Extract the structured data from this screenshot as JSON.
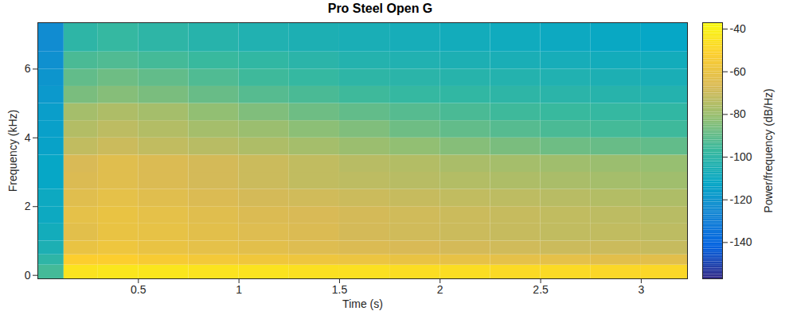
{
  "chart_data": {
    "type": "heatmap",
    "title": "Pro Steel Open G",
    "x_label": "Time (s)",
    "y_label": "Frequency (kHz)",
    "xlim": [
      0,
      3.23
    ],
    "xticks": [
      0.5,
      1,
      1.5,
      2,
      2.5,
      3
    ],
    "ylim": [
      -0.1,
      7.35
    ],
    "yticks": [
      0,
      2,
      4,
      6
    ],
    "time_edges": [
      0,
      0.13,
      0.3,
      0.5,
      0.75,
      1.0,
      1.25,
      1.5,
      1.75,
      2.0,
      2.25,
      2.5,
      2.75,
      3.0,
      3.23
    ],
    "freq_edges": [
      -0.1,
      0.3,
      0.6,
      1.0,
      1.5,
      2.0,
      2.5,
      3.0,
      3.5,
      4.0,
      4.5,
      5.0,
      5.5,
      6.0,
      6.5,
      7.35
    ],
    "cells": [
      [
        -95,
        -45,
        -44,
        -44,
        -45,
        -45,
        -46,
        -46,
        -47,
        -47,
        -48,
        -48,
        -49,
        -49
      ],
      [
        -100,
        -52,
        -52,
        -54,
        -56,
        -57,
        -58,
        -59,
        -60,
        -61,
        -62,
        -62,
        -63,
        -63
      ],
      [
        -105,
        -60,
        -58,
        -60,
        -62,
        -63,
        -65,
        -66,
        -67,
        -68,
        -69,
        -70,
        -70,
        -71
      ],
      [
        -108,
        -63,
        -60,
        -61,
        -63,
        -65,
        -66,
        -68,
        -69,
        -70,
        -71,
        -72,
        -72,
        -73
      ],
      [
        -110,
        -62,
        -60,
        -62,
        -64,
        -66,
        -67,
        -68,
        -69,
        -70,
        -71,
        -72,
        -73,
        -74
      ],
      [
        -110,
        -64,
        -62,
        -64,
        -66,
        -68,
        -69,
        -70,
        -71,
        -72,
        -73,
        -74,
        -75,
        -76
      ],
      [
        -112,
        -66,
        -64,
        -66,
        -68,
        -70,
        -72,
        -73,
        -74,
        -75,
        -76,
        -77,
        -78,
        -79
      ],
      [
        -112,
        -67,
        -64,
        -66,
        -68,
        -70,
        -72,
        -74,
        -75,
        -77,
        -78,
        -79,
        -80,
        -81
      ],
      [
        -114,
        -72,
        -70,
        -72,
        -74,
        -76,
        -78,
        -80,
        -82,
        -84,
        -86,
        -88,
        -89,
        -90
      ],
      [
        -115,
        -75,
        -73,
        -75,
        -78,
        -80,
        -83,
        -85,
        -88,
        -90,
        -92,
        -94,
        -95,
        -96
      ],
      [
        -116,
        -78,
        -76,
        -78,
        -82,
        -85,
        -88,
        -90,
        -92,
        -94,
        -96,
        -97,
        -98,
        -99
      ],
      [
        -118,
        -86,
        -84,
        -86,
        -89,
        -92,
        -94,
        -96,
        -98,
        -99,
        -100,
        -101,
        -102,
        -103
      ],
      [
        -120,
        -90,
        -88,
        -90,
        -93,
        -96,
        -98,
        -100,
        -101,
        -102,
        -103,
        -104,
        -105,
        -106
      ],
      [
        -122,
        -94,
        -93,
        -95,
        -97,
        -99,
        -101,
        -103,
        -104,
        -105,
        -106,
        -107,
        -108,
        -108
      ],
      [
        -124,
        -100,
        -98,
        -100,
        -102,
        -104,
        -105,
        -106,
        -107,
        -108,
        -109,
        -110,
        -111,
        -112
      ]
    ],
    "colorbar": {
      "label": "Power/frequency (dB/Hz)",
      "lim": [
        -157,
        -37
      ],
      "ticks": [
        -140,
        -120,
        -100,
        -80,
        -60,
        -40
      ]
    }
  }
}
